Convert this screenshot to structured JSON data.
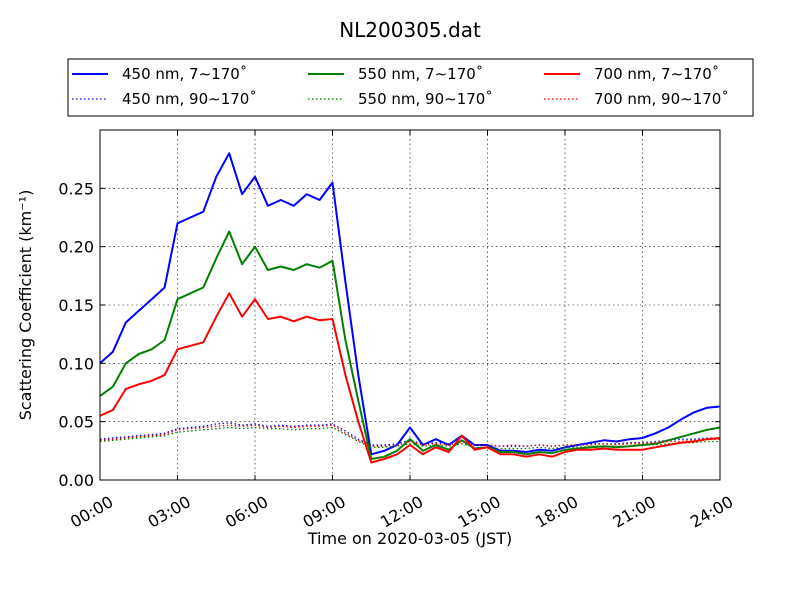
{
  "chart_data": {
    "type": "line",
    "title": "NL200305.dat",
    "xlabel": "Time on 2020-03-05 (JST)",
    "ylabel": "Scattering Coefficient (km⁻¹)",
    "xlim": [
      0,
      24
    ],
    "ylim": [
      0,
      0.3
    ],
    "x_ticks": [
      0,
      3,
      6,
      9,
      12,
      15,
      18,
      21,
      24
    ],
    "x_tick_labels": [
      "00:00",
      "03:00",
      "06:00",
      "09:00",
      "12:00",
      "15:00",
      "18:00",
      "21:00",
      "24:00"
    ],
    "y_ticks": [
      0,
      0.05,
      0.1,
      0.15,
      0.2,
      0.25
    ],
    "y_tick_labels": [
      "0.00",
      "0.05",
      "0.10",
      "0.15",
      "0.20",
      "0.25"
    ],
    "grid": true,
    "legend_placement": "top",
    "x": [
      0,
      0.5,
      1,
      1.5,
      2,
      2.5,
      3,
      3.5,
      4,
      4.5,
      5,
      5.5,
      6,
      6.5,
      7,
      7.5,
      8,
      8.5,
      9,
      9.5,
      10,
      10.5,
      11,
      11.5,
      12,
      12.5,
      13,
      13.5,
      14,
      14.5,
      15,
      15.5,
      16,
      16.5,
      17,
      17.5,
      18,
      18.5,
      19,
      19.5,
      20,
      20.5,
      21,
      21.5,
      22,
      22.5,
      23,
      23.5,
      24
    ],
    "series": [
      {
        "name": "450 nm, 7∼170˚",
        "color": "#0000ff",
        "style": "solid",
        "values": [
          0.1,
          0.11,
          0.135,
          0.145,
          0.155,
          0.165,
          0.22,
          0.225,
          0.23,
          0.26,
          0.28,
          0.245,
          0.26,
          0.235,
          0.24,
          0.235,
          0.245,
          0.24,
          0.255,
          0.17,
          0.09,
          0.022,
          0.025,
          0.03,
          0.045,
          0.03,
          0.035,
          0.03,
          0.038,
          0.03,
          0.03,
          0.025,
          0.025,
          0.024,
          0.026,
          0.025,
          0.028,
          0.03,
          0.032,
          0.034,
          0.033,
          0.035,
          0.036,
          0.04,
          0.045,
          0.052,
          0.058,
          0.062,
          0.063
        ]
      },
      {
        "name": "450 nm, 90∼170˚",
        "color": "#0000ff",
        "style": "dotted",
        "values": [
          0.035,
          0.036,
          0.037,
          0.038,
          0.039,
          0.04,
          0.044,
          0.045,
          0.046,
          0.048,
          0.049,
          0.047,
          0.048,
          0.046,
          0.047,
          0.046,
          0.047,
          0.047,
          0.048,
          0.042,
          0.035,
          0.03,
          0.03,
          0.031,
          0.034,
          0.031,
          0.032,
          0.031,
          0.033,
          0.03,
          0.03,
          0.029,
          0.029,
          0.029,
          0.03,
          0.029,
          0.03,
          0.03,
          0.031,
          0.031,
          0.031,
          0.032,
          0.032,
          0.033,
          0.034,
          0.035,
          0.035,
          0.036,
          0.036
        ]
      },
      {
        "name": "550 nm, 7∼170˚",
        "color": "#008000",
        "style": "solid",
        "values": [
          0.072,
          0.08,
          0.1,
          0.108,
          0.112,
          0.12,
          0.155,
          0.16,
          0.165,
          0.19,
          0.213,
          0.185,
          0.2,
          0.18,
          0.183,
          0.18,
          0.185,
          0.182,
          0.188,
          0.12,
          0.068,
          0.018,
          0.02,
          0.025,
          0.035,
          0.025,
          0.03,
          0.026,
          0.034,
          0.027,
          0.028,
          0.024,
          0.024,
          0.022,
          0.024,
          0.023,
          0.026,
          0.027,
          0.028,
          0.029,
          0.028,
          0.029,
          0.03,
          0.031,
          0.034,
          0.037,
          0.04,
          0.043,
          0.045
        ]
      },
      {
        "name": "550 nm, 90∼170˚",
        "color": "#008000",
        "style": "dotted",
        "values": [
          0.033,
          0.034,
          0.035,
          0.036,
          0.037,
          0.038,
          0.041,
          0.042,
          0.043,
          0.044,
          0.045,
          0.044,
          0.045,
          0.044,
          0.044,
          0.043,
          0.044,
          0.044,
          0.045,
          0.039,
          0.033,
          0.028,
          0.028,
          0.029,
          0.031,
          0.029,
          0.03,
          0.029,
          0.031,
          0.028,
          0.028,
          0.027,
          0.027,
          0.027,
          0.028,
          0.027,
          0.028,
          0.028,
          0.029,
          0.029,
          0.029,
          0.029,
          0.03,
          0.03,
          0.031,
          0.032,
          0.032,
          0.033,
          0.033
        ]
      },
      {
        "name": "700 nm, 7∼170˚",
        "color": "#ff0000",
        "style": "solid",
        "values": [
          0.055,
          0.06,
          0.078,
          0.082,
          0.085,
          0.09,
          0.112,
          0.115,
          0.118,
          0.14,
          0.16,
          0.14,
          0.155,
          0.138,
          0.14,
          0.136,
          0.14,
          0.137,
          0.138,
          0.09,
          0.05,
          0.015,
          0.018,
          0.022,
          0.03,
          0.022,
          0.028,
          0.024,
          0.038,
          0.026,
          0.028,
          0.022,
          0.022,
          0.02,
          0.022,
          0.02,
          0.024,
          0.026,
          0.026,
          0.027,
          0.026,
          0.026,
          0.026,
          0.028,
          0.03,
          0.032,
          0.033,
          0.035,
          0.036
        ]
      },
      {
        "name": "700 nm, 90∼170˚",
        "color": "#ff0000",
        "style": "dotted",
        "values": [
          0.034,
          0.035,
          0.036,
          0.037,
          0.038,
          0.039,
          0.043,
          0.044,
          0.045,
          0.046,
          0.047,
          0.046,
          0.047,
          0.045,
          0.046,
          0.045,
          0.046,
          0.046,
          0.047,
          0.04,
          0.034,
          0.029,
          0.029,
          0.03,
          0.033,
          0.03,
          0.031,
          0.03,
          0.033,
          0.03,
          0.03,
          0.029,
          0.03,
          0.029,
          0.03,
          0.029,
          0.03,
          0.03,
          0.03,
          0.031,
          0.03,
          0.031,
          0.031,
          0.032,
          0.033,
          0.033,
          0.034,
          0.035,
          0.035
        ]
      }
    ]
  }
}
